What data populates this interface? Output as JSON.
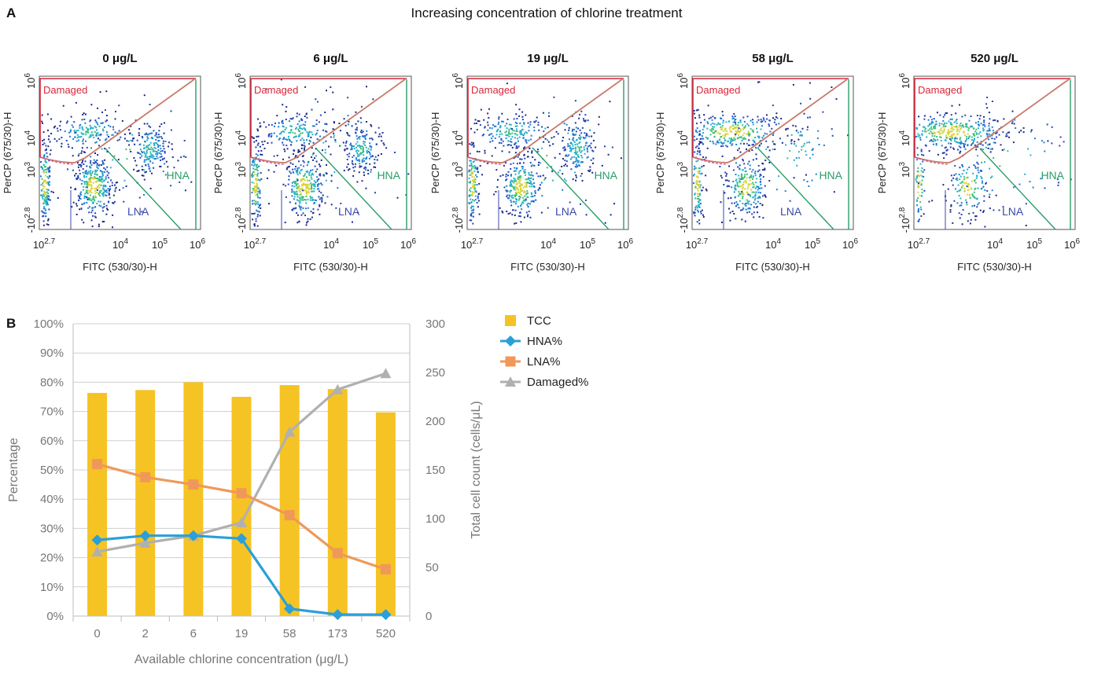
{
  "panel_a": {
    "letter": "A",
    "heading": "Increasing concentration of chlorine treatment",
    "x_axis_label": "FITC (530/30)-H",
    "y_axis_label": "PerCP (675/30)-H",
    "x_ticks": [
      "10^2.7",
      "10^4",
      "10^5",
      "10^6"
    ],
    "y_ticks": [
      "-10^2.8",
      "10^3",
      "10^4",
      "10^6"
    ],
    "gate_labels": {
      "damaged": "Damaged",
      "hna": "HNA",
      "lna": "LNA"
    },
    "plots": [
      {
        "label": "0 μg/L",
        "damaged_density": 0.25,
        "hna_density": 0.27,
        "lna_density": 0.52
      },
      {
        "label": "6 μg/L",
        "damaged_density": 0.28,
        "hna_density": 0.28,
        "lna_density": 0.45
      },
      {
        "label": "19 μg/L",
        "damaged_density": 0.32,
        "hna_density": 0.26,
        "lna_density": 0.42
      },
      {
        "label": "58 μg/L",
        "damaged_density": 0.63,
        "hna_density": 0.02,
        "lna_density": 0.34
      },
      {
        "label": "520 μg/L",
        "damaged_density": 0.83,
        "hna_density": 0.0,
        "lna_density": 0.16
      }
    ],
    "colors": {
      "damaged_gate": "#d9263a",
      "hna_gate": "#2a9d6a",
      "lna_gate": "#3a4aa8",
      "diag_gate": "#c97a6a"
    }
  },
  "chart_data": {
    "letter": "B",
    "type": "bar",
    "categories": [
      "0",
      "2",
      "6",
      "19",
      "58",
      "173",
      "520"
    ],
    "xlabel": "Available chlorine concentration (μg/L)",
    "ylabel": "Percentage",
    "ylabel_right": "Total cell count (cells/μL)",
    "ylim": [
      0,
      100
    ],
    "ylim_right": [
      0,
      300
    ],
    "y_ticks": [
      "0%",
      "10%",
      "20%",
      "30%",
      "40%",
      "50%",
      "60%",
      "70%",
      "80%",
      "90%",
      "100%"
    ],
    "y_ticks_right": [
      "0",
      "50",
      "100",
      "150",
      "200",
      "250",
      "300"
    ],
    "grid": true,
    "legend_position": "top-right",
    "series": [
      {
        "name": "TCC",
        "type": "bar",
        "axis": "right",
        "color": "#f5c324",
        "values": [
          229,
          232,
          240,
          225,
          237,
          233,
          209
        ]
      },
      {
        "name": "HNA%",
        "type": "line",
        "marker": "diamond",
        "color": "#2a9fd8",
        "values": [
          26,
          27.5,
          27.5,
          26.5,
          2.5,
          0.5,
          0.5
        ]
      },
      {
        "name": "LNA%",
        "type": "line",
        "marker": "square",
        "color": "#f0985a",
        "values": [
          52,
          47.5,
          45,
          42,
          34.5,
          21.5,
          16
        ]
      },
      {
        "name": "Damaged%",
        "type": "line",
        "marker": "triangle",
        "color": "#b0b0b0",
        "values": [
          22,
          25,
          27.5,
          32,
          63,
          77.5,
          83
        ]
      }
    ]
  }
}
